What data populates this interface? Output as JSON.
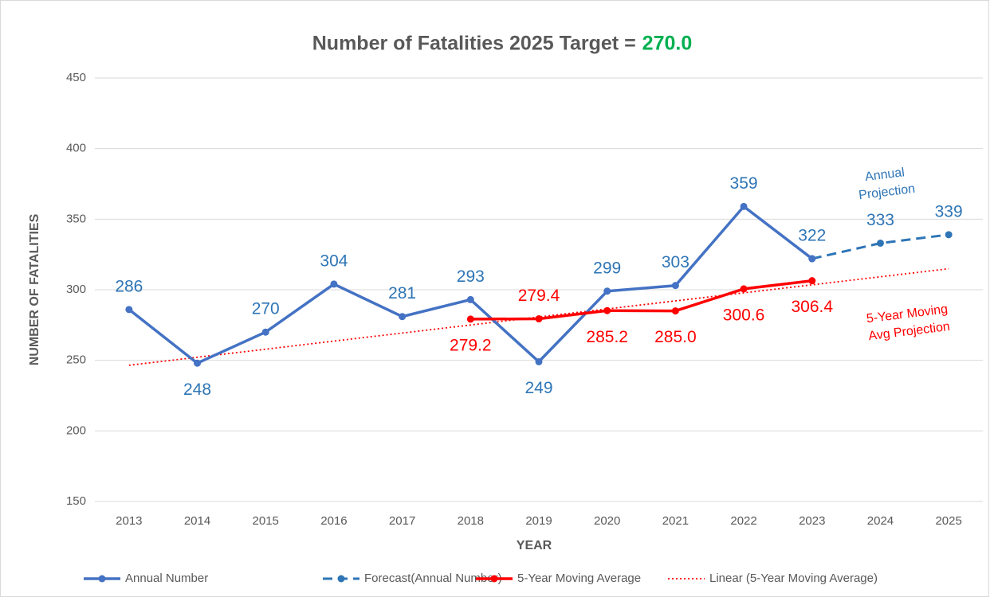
{
  "chart_data": {
    "type": "line",
    "title": "Number of Fatalities 2025 Target =",
    "title_target": "270.0",
    "x_label": "YEAR",
    "y_label": "NUMBER OF FATALITIES",
    "categories": [
      "2013",
      "2014",
      "2015",
      "2016",
      "2017",
      "2018",
      "2019",
      "2020",
      "2021",
      "2022",
      "2023",
      "2024",
      "2025"
    ],
    "ylim": [
      150,
      450
    ],
    "yticks": [
      150,
      200,
      250,
      300,
      350,
      400,
      450
    ],
    "grid": true,
    "legend": "bottom",
    "series": [
      {
        "name": "Annual Number",
        "color": "#4472c4",
        "style": "solid",
        "values": [
          286,
          248,
          270,
          304,
          281,
          293,
          249,
          299,
          303,
          359,
          322,
          null,
          null
        ]
      },
      {
        "name": "Forecast(Annual Number)",
        "color": "#2e75b6",
        "style": "dashed",
        "values": [
          null,
          null,
          null,
          null,
          null,
          null,
          null,
          null,
          null,
          null,
          322,
          333,
          339
        ],
        "value_labels": [
          null,
          null,
          null,
          null,
          null,
          null,
          null,
          null,
          null,
          null,
          null,
          "333",
          "339"
        ]
      },
      {
        "name": "5-Year Moving Average",
        "color": "#ff0000",
        "style": "solid",
        "values": [
          null,
          null,
          null,
          null,
          null,
          279.2,
          279.4,
          285.2,
          285.0,
          300.6,
          306.4,
          null,
          null
        ],
        "value_labels": [
          null,
          null,
          null,
          null,
          null,
          "279.2",
          "279.4",
          "285.2",
          "285.0",
          "300.6",
          "306.4",
          null,
          null
        ]
      },
      {
        "name": "Linear (5-Year Moving Average)",
        "color": "#ff0000",
        "style": "dotted",
        "values": [
          246.5,
          252.2,
          257.9,
          263.6,
          269.3,
          275.0,
          280.7,
          286.4,
          292.1,
          297.8,
          303.5,
          309.2,
          314.9
        ]
      }
    ],
    "annotations": [
      {
        "lines": [
          "Annual",
          "Projection"
        ],
        "color": "#2e75b6"
      },
      {
        "lines": [
          "5-Year Moving",
          "Avg Projection"
        ],
        "color": "#ff0000"
      }
    ]
  }
}
